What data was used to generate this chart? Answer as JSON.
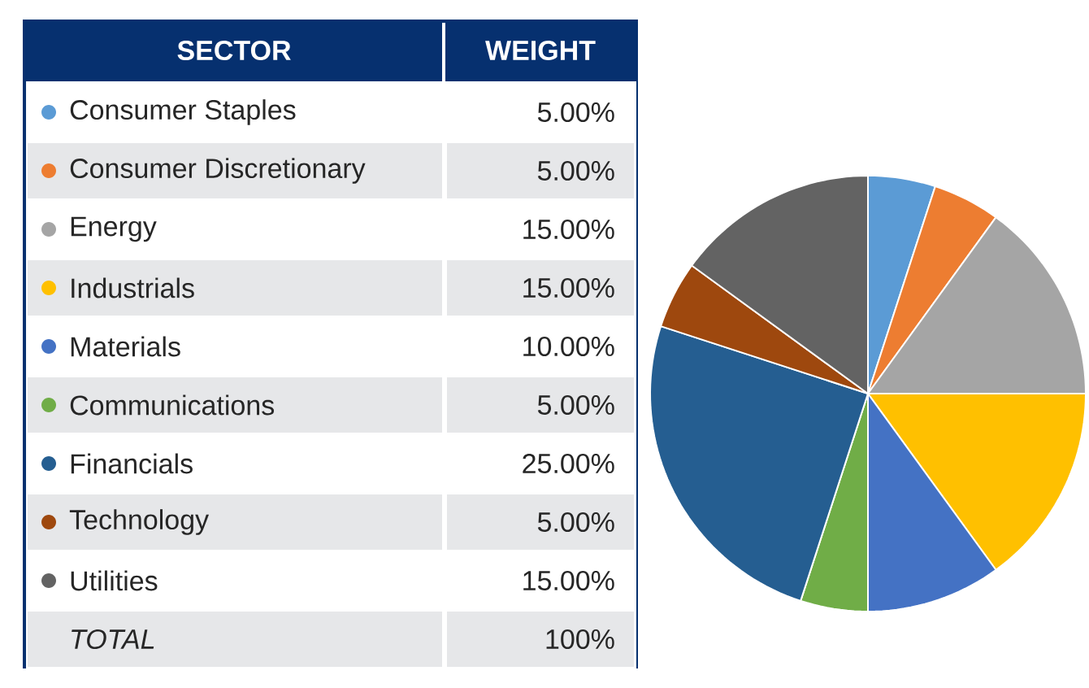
{
  "chart_data": {
    "type": "pie",
    "legend_title": "SECTOR",
    "legend": "left",
    "categories": [
      "Consumer Staples",
      "Consumer Discretionary",
      "Energy",
      "Industrials",
      "Materials",
      "Communications",
      "Financials",
      "Technology",
      "Utilities"
    ],
    "values": [
      5,
      5,
      15,
      15,
      10,
      5,
      25,
      5,
      15
    ],
    "value_labels": [
      "5.00%",
      "5.00%",
      "15.00%",
      "15.00%",
      "10.00%",
      "5.00%",
      "25.00%",
      "5.00%",
      "15.00%"
    ],
    "colors": [
      "#5b9bd5",
      "#ed7d31",
      "#a5a5a5",
      "#ffc000",
      "#4472c4",
      "#70ad47",
      "#255e91",
      "#9e480e",
      "#636363"
    ],
    "annotations": [
      "WEIGHT",
      "TOTAL",
      "100%"
    ]
  }
}
